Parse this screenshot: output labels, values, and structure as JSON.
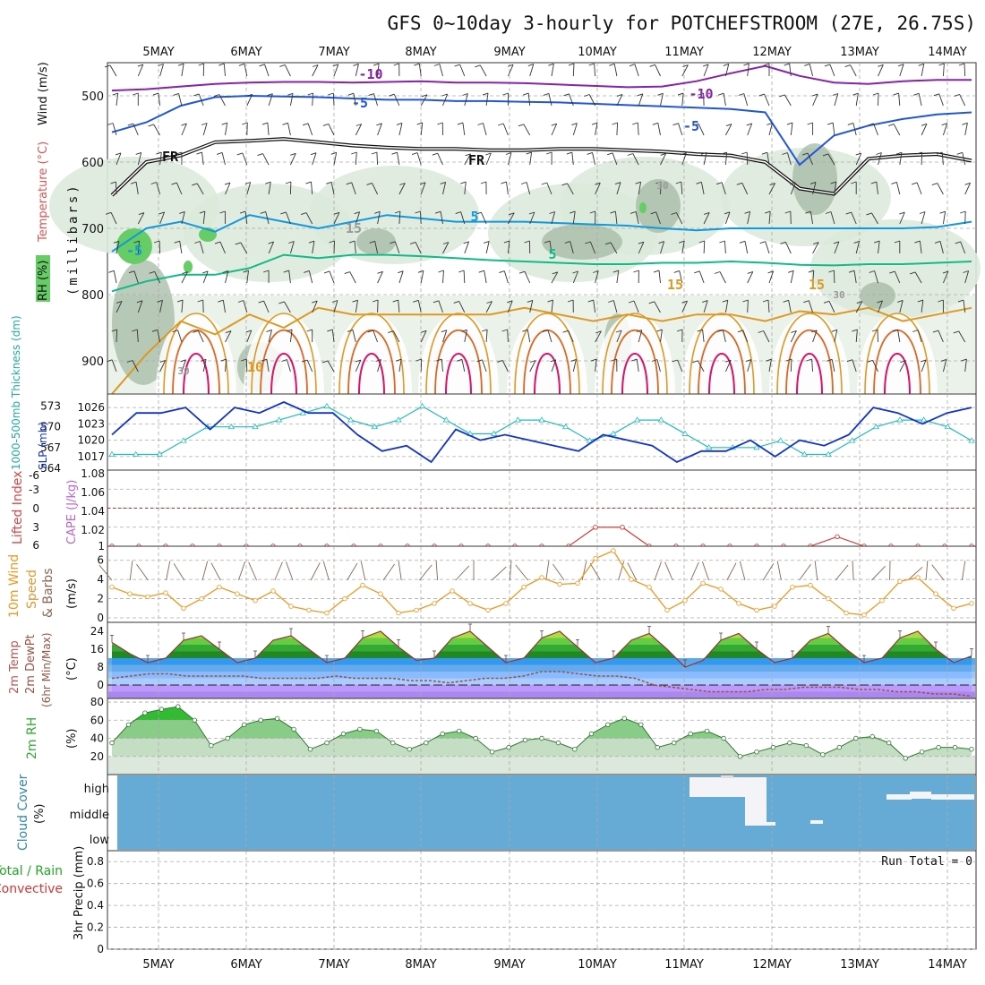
{
  "title": "GFS 0~10day 3-hourly for POTCHEFSTROOM (27E, 26.75S)",
  "colors": {
    "grid": "#aaaaaa",
    "rh_light": "#dceadc",
    "rh_mid": "#9fb79f",
    "rh_green": "#66cc66",
    "temp_m10": "#8822aa",
    "temp_m5": "#2255dd",
    "temp_fr": "#111111",
    "temp_5": "#1199dd",
    "temp_10": "#11bb88",
    "temp_15": "#dd9922",
    "temp_20": "#dd6622",
    "temp_25": "#dd1166",
    "slp": "#1133cc",
    "thickness": "#22bbbb",
    "cape_li_ref": "#dd2222",
    "cape_red": "#dd2222",
    "wind_speed": "#ee9922",
    "barb": "#886655",
    "tmax_fill": "#22bb22",
    "dewpt": "#995544",
    "cloud_blue": "#66aad6",
    "rh2m_fill": "#33bb33"
  },
  "chart_data": [
    {
      "type": "contour",
      "panel": "upper-air",
      "y_label_wind": "Wind (m/s)",
      "y_label_temp": "Temperature (°C)",
      "y_label_rh": "RH (%)",
      "y_label_p": "(millibars)",
      "y_ticks": [
        500,
        600,
        700,
        800,
        900
      ],
      "ylim": [
        450,
        950
      ],
      "x_ticks": [
        "5MAY",
        "6MAY",
        "7MAY",
        "8MAY",
        "9MAY",
        "10MAY",
        "11MAY",
        "12MAY",
        "13MAY",
        "14MAY"
      ],
      "contour_labels": [
        "-10",
        "-10",
        "-5",
        "-5",
        "FR",
        "FR",
        "-5",
        "5",
        "5",
        "10",
        "15",
        "15",
        "15",
        "30",
        "30",
        "30"
      ],
      "isotherms": [
        {
          "name": "-10",
          "p": [
            492,
            490,
            486,
            482,
            480,
            479,
            479,
            480,
            479,
            478,
            480,
            480,
            481,
            483,
            485,
            487,
            486,
            478,
            466,
            455,
            470,
            480,
            482,
            478,
            476,
            476
          ]
        },
        {
          "name": "-5",
          "p": [
            555,
            540,
            515,
            502,
            500,
            501,
            502,
            504,
            506,
            506,
            508,
            508,
            509,
            510,
            512,
            514,
            516,
            518,
            520,
            525,
            604,
            560,
            545,
            535,
            528,
            525
          ]
        },
        {
          "name": "FR",
          "p": [
            650,
            600,
            590,
            570,
            568,
            565,
            570,
            575,
            578,
            580,
            580,
            582,
            582,
            580,
            580,
            582,
            584,
            588,
            590,
            600,
            640,
            648,
            595,
            590,
            588,
            598
          ]
        },
        {
          "name": "5",
          "p": [
            735,
            700,
            690,
            705,
            680,
            690,
            700,
            690,
            680,
            685,
            690,
            690,
            690,
            692,
            694,
            696,
            700,
            703,
            700,
            700,
            700,
            700,
            700,
            700,
            698,
            690
          ]
        },
        {
          "name": "10",
          "p": [
            795,
            780,
            770,
            770,
            760,
            740,
            745,
            740,
            740,
            742,
            745,
            748,
            750,
            752,
            754,
            754,
            752,
            752,
            750,
            752,
            755,
            756,
            754,
            754,
            752,
            750
          ]
        },
        {
          "name": "15",
          "p": [
            950,
            890,
            840,
            860,
            830,
            850,
            820,
            830,
            830,
            830,
            830,
            830,
            820,
            830,
            840,
            830,
            840,
            830,
            830,
            840,
            825,
            830,
            820,
            840,
            830,
            820
          ]
        }
      ]
    },
    {
      "type": "line",
      "panel": "slp-thickness",
      "series": [
        {
          "name": "SLP (mb)",
          "axis": "right-inner",
          "ticks": [
            1017,
            1020,
            1023,
            1026
          ],
          "values": [
            1021,
            1025,
            1025,
            1026,
            1022,
            1026,
            1025,
            1027,
            1025,
            1025,
            1021,
            1018,
            1019,
            1016,
            1022,
            1020,
            1021,
            1020,
            1019,
            1018,
            1021,
            1020,
            1019,
            1016,
            1018,
            1018,
            1020,
            1017,
            1020,
            1019,
            1021,
            1026,
            1025,
            1023,
            1025,
            1026
          ]
        },
        {
          "name": "1000-500mb Thickness (dm)",
          "axis": "left",
          "ticks": [
            564,
            567,
            570,
            573
          ],
          "values": [
            566,
            566,
            566,
            568,
            570,
            570,
            570,
            571,
            572,
            573,
            571,
            570,
            571,
            573,
            571,
            569,
            569,
            571,
            571,
            570,
            568,
            569,
            571,
            571,
            569,
            567,
            567,
            567,
            568,
            566,
            566,
            568,
            570,
            571,
            571,
            570,
            568
          ]
        }
      ]
    },
    {
      "type": "line",
      "panel": "cape-li",
      "y_label_li": "Lifted Index",
      "y_label_cape": "CAPE (J/kg)",
      "li_ticks": [
        "-6",
        "-3",
        "0",
        "3",
        "6"
      ],
      "cape_ticks": [
        "1.08",
        "1.06",
        "1.04",
        "1.02",
        "1"
      ],
      "series": [
        {
          "name": "CAPE",
          "values": [
            1.0,
            1.0,
            1.0,
            1.0,
            1.0,
            1.0,
            1.0,
            1.0,
            1.0,
            1.0,
            1.0,
            1.0,
            1.0,
            1.0,
            1.0,
            1.0,
            1.0,
            1.0,
            1.02,
            1.02,
            1.0,
            1.0,
            1.0,
            1.0,
            1.0,
            1.0,
            1.0,
            1.01,
            1.0,
            1.0,
            1.0,
            1.0,
            1.0
          ]
        }
      ]
    },
    {
      "type": "line",
      "panel": "wind10m",
      "y_label_wind": "10m Wind",
      "y_label_speed": "Speed",
      "y_label_barbs": "& Barbs",
      "y_label_unit": "(m/s)",
      "y_ticks": [
        0,
        2,
        4,
        6
      ],
      "ylim": [
        0,
        7
      ],
      "series": [
        {
          "name": "10m Wind Speed",
          "values": [
            3.2,
            2.5,
            2.2,
            2.6,
            1.0,
            2.0,
            3.2,
            2.5,
            1.8,
            2.8,
            1.2,
            0.8,
            0.5,
            2.0,
            3.4,
            2.5,
            0.5,
            0.8,
            1.5,
            2.8,
            1.5,
            0.8,
            1.5,
            3.2,
            4.2,
            3.5,
            3.6,
            6.2,
            7.0,
            4.0,
            3.2,
            0.8,
            1.8,
            3.6,
            3.0,
            1.5,
            0.8,
            1.2,
            3.2,
            3.4,
            2.0,
            0.5,
            0.3,
            1.8,
            3.8,
            4.2,
            2.5,
            1.0,
            1.5
          ]
        }
      ]
    },
    {
      "type": "area",
      "panel": "temp2m",
      "y_label_temp": "2m Temp",
      "y_label_dewpt": "2m DewPt",
      "y_label_minmax": "(6hr Min/Max)",
      "y_label_unit": "(°C)",
      "y_ticks": [
        0,
        8,
        16,
        24
      ],
      "ylim": [
        -6,
        28
      ],
      "series": [
        {
          "name": "2m Temp",
          "values": [
            19,
            14,
            10,
            12,
            20,
            22,
            16,
            10,
            12,
            20,
            22,
            16,
            10,
            12,
            21,
            24,
            17,
            11,
            12,
            21,
            24,
            17,
            10,
            12,
            21,
            24,
            17,
            10,
            12,
            20,
            23,
            16,
            8,
            11,
            20,
            23,
            16,
            10,
            12,
            20,
            23,
            16,
            10,
            12,
            21,
            24,
            16,
            10,
            13
          ]
        },
        {
          "name": "2m DewPt",
          "values": [
            3,
            4,
            5,
            5,
            4,
            4,
            4,
            4,
            3,
            3,
            3,
            3,
            4,
            3,
            3,
            3,
            2,
            2,
            1,
            2,
            3,
            3,
            4,
            6,
            6,
            5,
            4,
            4,
            3,
            0,
            -1,
            -2,
            -3,
            -3,
            -3,
            -2,
            -2,
            -1,
            -1,
            -1,
            -2,
            -2,
            -3,
            -3,
            -4,
            -4,
            -5
          ]
        }
      ]
    },
    {
      "type": "area",
      "panel": "rh2m",
      "y_label": "2m RH",
      "y_label_unit": "(%)",
      "y_ticks": [
        20,
        40,
        60,
        80
      ],
      "ylim": [
        0,
        84
      ],
      "series": [
        {
          "name": "2m RH",
          "values": [
            35,
            55,
            68,
            72,
            75,
            60,
            32,
            40,
            55,
            60,
            62,
            50,
            28,
            35,
            45,
            50,
            48,
            35,
            28,
            35,
            45,
            48,
            40,
            25,
            30,
            38,
            40,
            35,
            28,
            45,
            55,
            62,
            55,
            30,
            35,
            45,
            48,
            40,
            20,
            25,
            30,
            35,
            32,
            22,
            30,
            40,
            42,
            35,
            18,
            25,
            30,
            30,
            28
          ]
        }
      ]
    },
    {
      "type": "heatmap",
      "panel": "cloud",
      "y_label": "Cloud Cover",
      "y_label_unit": "(%)",
      "levels": [
        "high",
        "middle",
        "low"
      ]
    },
    {
      "type": "bar",
      "panel": "precip",
      "y_label_total": "Total / Rain",
      "y_label_conv": "Convective",
      "y_label": "3hr Precip (mm)",
      "y_ticks": [
        "0",
        "0.2",
        "0.4",
        "0.6",
        "0.8"
      ],
      "ylim": [
        0,
        0.9
      ],
      "run_total": "Run Total = 0",
      "values": []
    }
  ]
}
